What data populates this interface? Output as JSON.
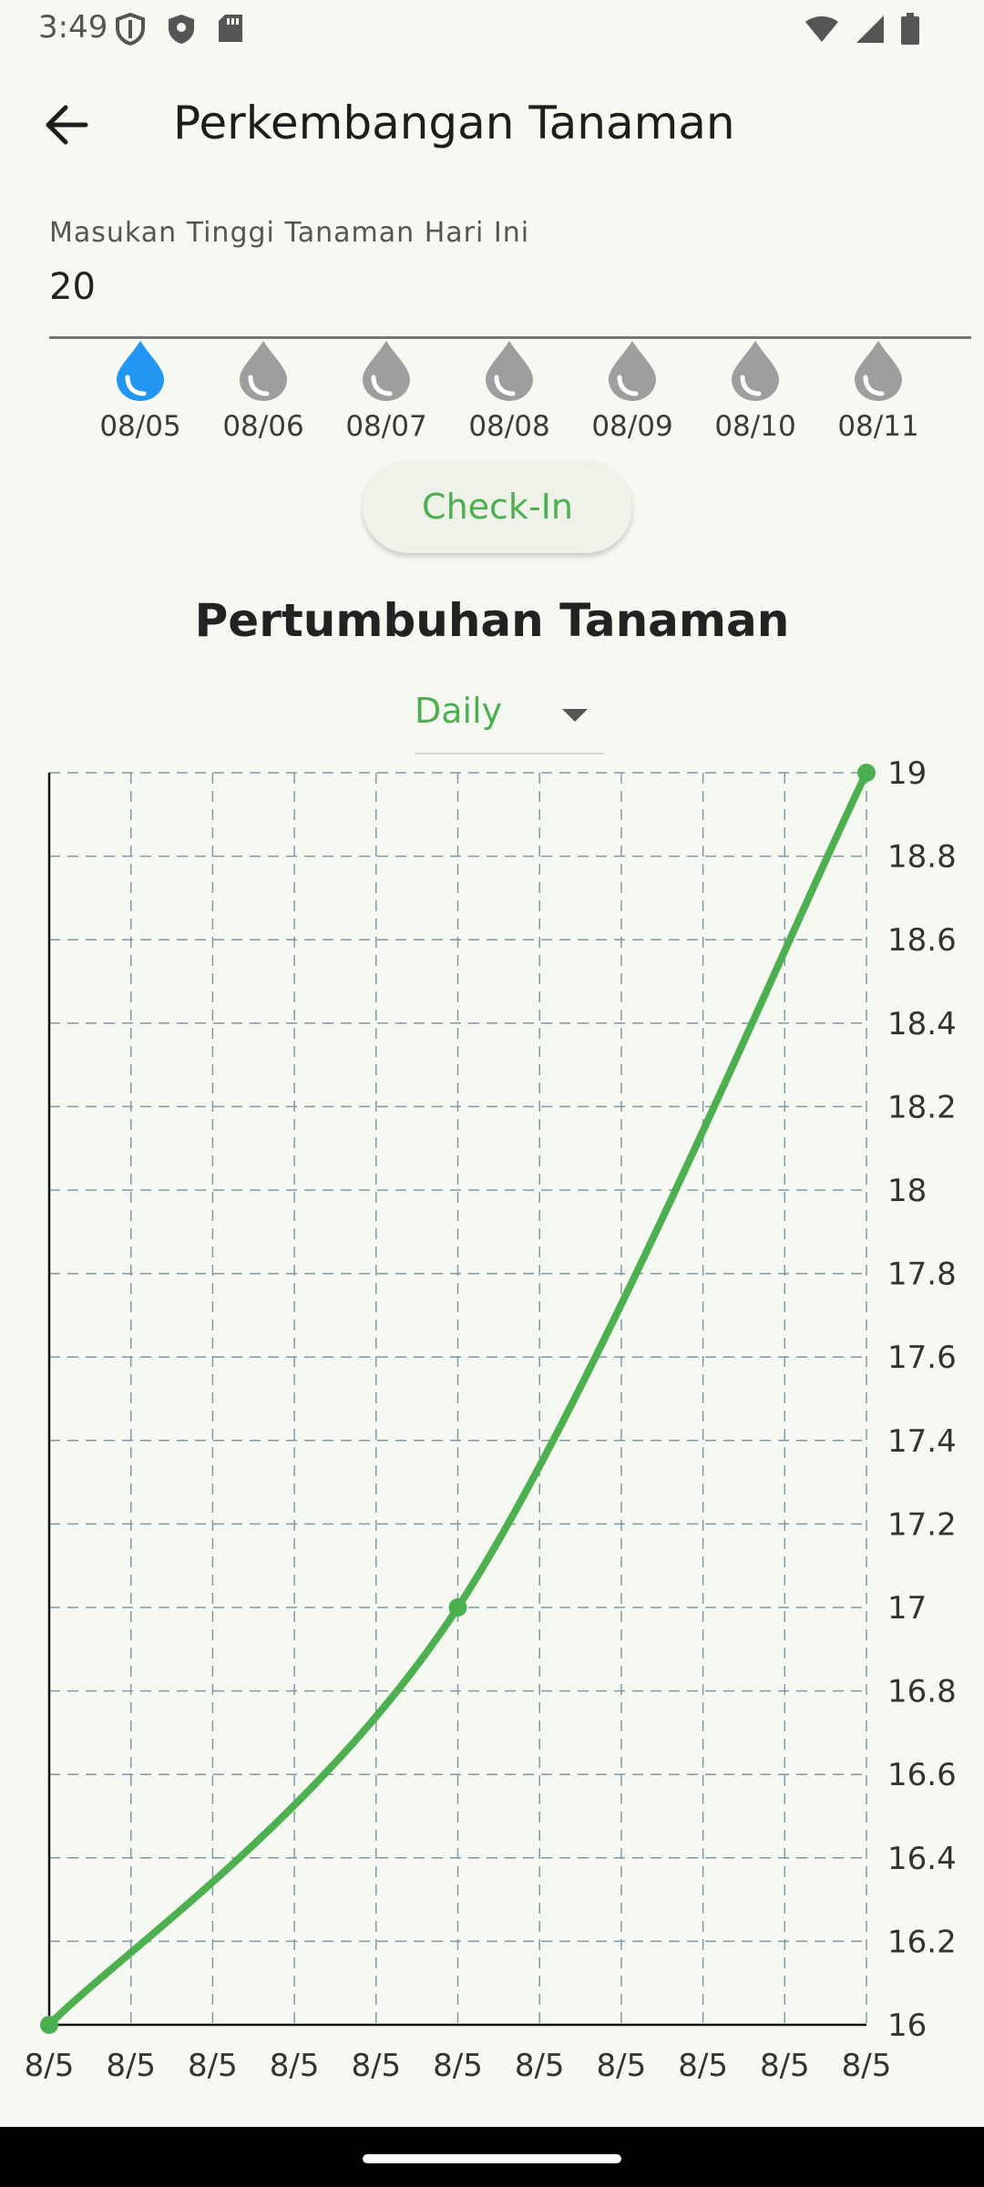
{
  "status_bar": {
    "time": "3:49"
  },
  "app_bar": {
    "title": "Perkembangan Tanaman"
  },
  "height_input": {
    "label": "Masukan Tinggi Tanaman Hari Ini",
    "value": "20"
  },
  "water_days": [
    {
      "date": "08/05",
      "done": true
    },
    {
      "date": "08/06",
      "done": false
    },
    {
      "date": "08/07",
      "done": false
    },
    {
      "date": "08/08",
      "done": false
    },
    {
      "date": "08/09",
      "done": false
    },
    {
      "date": "08/10",
      "done": false
    },
    {
      "date": "08/11",
      "done": false
    }
  ],
  "checkin_label": "Check-In",
  "chart_heading": "Pertumbuhan Tanaman",
  "period_select": {
    "value": "Daily"
  },
  "colors": {
    "accent": "#4caf50",
    "drop_active": "#2196f3",
    "drop_inactive": "#9e9e9e",
    "grid": "#7f9aa6"
  },
  "chart_data": {
    "type": "line",
    "x_tick_labels": [
      "8/5",
      "8/5",
      "8/5",
      "8/5",
      "8/5",
      "8/5",
      "8/5",
      "8/5",
      "8/5",
      "8/5",
      "8/5"
    ],
    "x": [
      0,
      5,
      10
    ],
    "y": [
      16,
      17,
      19
    ],
    "ylim": [
      16,
      19
    ],
    "y_ticks": [
      16,
      16.2,
      16.4,
      16.6,
      16.8,
      17,
      17.2,
      17.4,
      17.6,
      17.8,
      18,
      18.2,
      18.4,
      18.6,
      18.8,
      19
    ],
    "y_axis_side": "right",
    "grid": true,
    "smooth": true
  }
}
